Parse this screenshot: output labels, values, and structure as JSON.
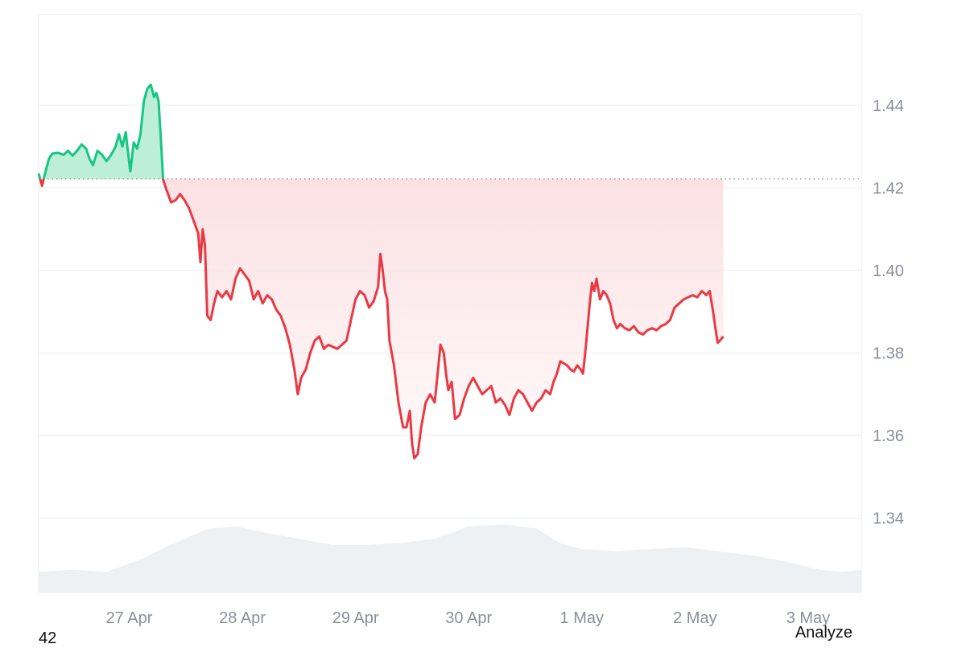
{
  "chart_data": {
    "type": "area",
    "series_name": "",
    "baseline": 1.4222,
    "ylim": [
      1.322,
      1.462
    ],
    "yticks": [
      1.34,
      1.36,
      1.38,
      1.4,
      1.42,
      1.44
    ],
    "ytick_labels": [
      "1.34",
      "1.36",
      "1.38",
      "1.40",
      "1.42",
      "1.44"
    ],
    "x_range_days": [
      0,
      7.27
    ],
    "xticks": [
      {
        "day": 0.8,
        "label": "27 Apr"
      },
      {
        "day": 1.8,
        "label": "28 Apr"
      },
      {
        "day": 2.8,
        "label": "29 Apr"
      },
      {
        "day": 3.8,
        "label": "30 Apr"
      },
      {
        "day": 4.8,
        "label": "1 May"
      },
      {
        "day": 5.8,
        "label": "2 May"
      },
      {
        "day": 6.8,
        "label": "3 May"
      }
    ],
    "price": [
      [
        0.0,
        1.4235
      ],
      [
        0.03,
        1.4205
      ],
      [
        0.06,
        1.4238
      ],
      [
        0.09,
        1.427
      ],
      [
        0.12,
        1.4283
      ],
      [
        0.17,
        1.4285
      ],
      [
        0.22,
        1.428
      ],
      [
        0.26,
        1.429
      ],
      [
        0.3,
        1.4278
      ],
      [
        0.34,
        1.429
      ],
      [
        0.38,
        1.4305
      ],
      [
        0.42,
        1.4295
      ],
      [
        0.45,
        1.427
      ],
      [
        0.48,
        1.4255
      ],
      [
        0.52,
        1.429
      ],
      [
        0.56,
        1.428
      ],
      [
        0.6,
        1.4265
      ],
      [
        0.64,
        1.428
      ],
      [
        0.68,
        1.43
      ],
      [
        0.71,
        1.433
      ],
      [
        0.74,
        1.43
      ],
      [
        0.77,
        1.4335
      ],
      [
        0.79,
        1.4285
      ],
      [
        0.81,
        1.424
      ],
      [
        0.84,
        1.431
      ],
      [
        0.87,
        1.4295
      ],
      [
        0.9,
        1.433
      ],
      [
        0.93,
        1.441
      ],
      [
        0.96,
        1.444
      ],
      [
        0.99,
        1.445
      ],
      [
        1.02,
        1.442
      ],
      [
        1.04,
        1.443
      ],
      [
        1.06,
        1.441
      ],
      [
        1.08,
        1.432
      ],
      [
        1.1,
        1.422
      ],
      [
        1.13,
        1.4195
      ],
      [
        1.17,
        1.4165
      ],
      [
        1.21,
        1.417
      ],
      [
        1.25,
        1.4185
      ],
      [
        1.29,
        1.417
      ],
      [
        1.33,
        1.415
      ],
      [
        1.37,
        1.412
      ],
      [
        1.41,
        1.409
      ],
      [
        1.43,
        1.402
      ],
      [
        1.45,
        1.41
      ],
      [
        1.47,
        1.406
      ],
      [
        1.49,
        1.389
      ],
      [
        1.52,
        1.388
      ],
      [
        1.55,
        1.392
      ],
      [
        1.58,
        1.395
      ],
      [
        1.62,
        1.3935
      ],
      [
        1.66,
        1.395
      ],
      [
        1.7,
        1.393
      ],
      [
        1.74,
        1.398
      ],
      [
        1.78,
        1.4005
      ],
      [
        1.82,
        1.399
      ],
      [
        1.86,
        1.3975
      ],
      [
        1.9,
        1.393
      ],
      [
        1.94,
        1.395
      ],
      [
        1.98,
        1.392
      ],
      [
        2.02,
        1.394
      ],
      [
        2.06,
        1.393
      ],
      [
        2.1,
        1.3905
      ],
      [
        2.14,
        1.389
      ],
      [
        2.18,
        1.386
      ],
      [
        2.22,
        1.382
      ],
      [
        2.26,
        1.376
      ],
      [
        2.29,
        1.37
      ],
      [
        2.32,
        1.374
      ],
      [
        2.36,
        1.376
      ],
      [
        2.4,
        1.38
      ],
      [
        2.44,
        1.383
      ],
      [
        2.48,
        1.384
      ],
      [
        2.52,
        1.381
      ],
      [
        2.56,
        1.382
      ],
      [
        2.6,
        1.3815
      ],
      [
        2.64,
        1.381
      ],
      [
        2.68,
        1.382
      ],
      [
        2.72,
        1.383
      ],
      [
        2.76,
        1.388
      ],
      [
        2.8,
        1.393
      ],
      [
        2.84,
        1.395
      ],
      [
        2.88,
        1.394
      ],
      [
        2.92,
        1.391
      ],
      [
        2.96,
        1.3925
      ],
      [
        3.0,
        1.396
      ],
      [
        3.02,
        1.404
      ],
      [
        3.04,
        1.4
      ],
      [
        3.06,
        1.395
      ],
      [
        3.08,
        1.393
      ],
      [
        3.1,
        1.383
      ],
      [
        3.14,
        1.377
      ],
      [
        3.18,
        1.368
      ],
      [
        3.22,
        1.362
      ],
      [
        3.25,
        1.362
      ],
      [
        3.28,
        1.366
      ],
      [
        3.3,
        1.358
      ],
      [
        3.32,
        1.3545
      ],
      [
        3.35,
        1.3555
      ],
      [
        3.38,
        1.362
      ],
      [
        3.42,
        1.368
      ],
      [
        3.46,
        1.37
      ],
      [
        3.5,
        1.368
      ],
      [
        3.53,
        1.376
      ],
      [
        3.55,
        1.382
      ],
      [
        3.58,
        1.38
      ],
      [
        3.6,
        1.375
      ],
      [
        3.62,
        1.371
      ],
      [
        3.65,
        1.373
      ],
      [
        3.68,
        1.364
      ],
      [
        3.72,
        1.365
      ],
      [
        3.76,
        1.369
      ],
      [
        3.8,
        1.372
      ],
      [
        3.84,
        1.374
      ],
      [
        3.88,
        1.372
      ],
      [
        3.92,
        1.37
      ],
      [
        3.96,
        1.371
      ],
      [
        4.0,
        1.372
      ],
      [
        4.04,
        1.368
      ],
      [
        4.08,
        1.369
      ],
      [
        4.12,
        1.3675
      ],
      [
        4.16,
        1.365
      ],
      [
        4.2,
        1.369
      ],
      [
        4.24,
        1.371
      ],
      [
        4.28,
        1.37
      ],
      [
        4.32,
        1.368
      ],
      [
        4.36,
        1.366
      ],
      [
        4.4,
        1.368
      ],
      [
        4.44,
        1.369
      ],
      [
        4.48,
        1.371
      ],
      [
        4.52,
        1.37
      ],
      [
        4.55,
        1.373
      ],
      [
        4.58,
        1.375
      ],
      [
        4.61,
        1.378
      ],
      [
        4.64,
        1.3775
      ],
      [
        4.67,
        1.377
      ],
      [
        4.7,
        1.376
      ],
      [
        4.73,
        1.3755
      ],
      [
        4.76,
        1.377
      ],
      [
        4.79,
        1.376
      ],
      [
        4.81,
        1.375
      ],
      [
        4.83,
        1.38
      ],
      [
        4.85,
        1.386
      ],
      [
        4.87,
        1.392
      ],
      [
        4.89,
        1.397
      ],
      [
        4.91,
        1.395
      ],
      [
        4.93,
        1.398
      ],
      [
        4.96,
        1.393
      ],
      [
        4.99,
        1.395
      ],
      [
        5.02,
        1.394
      ],
      [
        5.05,
        1.392
      ],
      [
        5.08,
        1.388
      ],
      [
        5.11,
        1.386
      ],
      [
        5.14,
        1.387
      ],
      [
        5.18,
        1.386
      ],
      [
        5.22,
        1.3855
      ],
      [
        5.26,
        1.3865
      ],
      [
        5.3,
        1.385
      ],
      [
        5.34,
        1.3845
      ],
      [
        5.38,
        1.3855
      ],
      [
        5.42,
        1.386
      ],
      [
        5.46,
        1.3855
      ],
      [
        5.5,
        1.3865
      ],
      [
        5.54,
        1.387
      ],
      [
        5.58,
        1.388
      ],
      [
        5.62,
        1.391
      ],
      [
        5.66,
        1.392
      ],
      [
        5.7,
        1.393
      ],
      [
        5.74,
        1.3935
      ],
      [
        5.78,
        1.394
      ],
      [
        5.82,
        1.3935
      ],
      [
        5.86,
        1.395
      ],
      [
        5.9,
        1.394
      ],
      [
        5.93,
        1.395
      ],
      [
        5.96,
        1.39
      ],
      [
        5.98,
        1.386
      ],
      [
        6.0,
        1.3825
      ],
      [
        6.02,
        1.383
      ],
      [
        6.05,
        1.384
      ]
    ],
    "volume": [
      [
        0.0,
        1.327
      ],
      [
        0.3,
        1.3275
      ],
      [
        0.6,
        1.327
      ],
      [
        0.9,
        1.33
      ],
      [
        1.2,
        1.334
      ],
      [
        1.5,
        1.3375
      ],
      [
        1.75,
        1.338
      ],
      [
        2.0,
        1.3365
      ],
      [
        2.3,
        1.335
      ],
      [
        2.6,
        1.3335
      ],
      [
        2.9,
        1.3335
      ],
      [
        3.2,
        1.334
      ],
      [
        3.5,
        1.335
      ],
      [
        3.8,
        1.338
      ],
      [
        4.1,
        1.3385
      ],
      [
        4.4,
        1.3375
      ],
      [
        4.6,
        1.334
      ],
      [
        4.8,
        1.3325
      ],
      [
        5.1,
        1.332
      ],
      [
        5.4,
        1.3325
      ],
      [
        5.7,
        1.333
      ],
      [
        6.0,
        1.332
      ],
      [
        6.3,
        1.331
      ],
      [
        6.6,
        1.3295
      ],
      [
        6.9,
        1.3275
      ],
      [
        7.1,
        1.327
      ],
      [
        7.27,
        1.3275
      ]
    ],
    "colors": {
      "up_line": "#16c784",
      "up_fill": "#bdeed6",
      "down_line": "#ea3943",
      "down_fill": "#fbdfe1",
      "volume_fill": "#eef1f4",
      "grid": "#e9ebee",
      "baseline_dots": "#7a7f87"
    }
  },
  "corner_left_text": "42",
  "analyze_label": "Analyze"
}
